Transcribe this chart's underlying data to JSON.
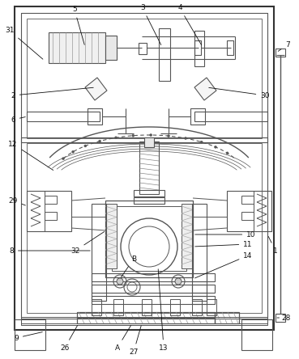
{
  "bg_color": "#ffffff",
  "lc": "#555555",
  "lc_dark": "#333333",
  "fig_width": 3.69,
  "fig_height": 4.44,
  "dpi": 100
}
